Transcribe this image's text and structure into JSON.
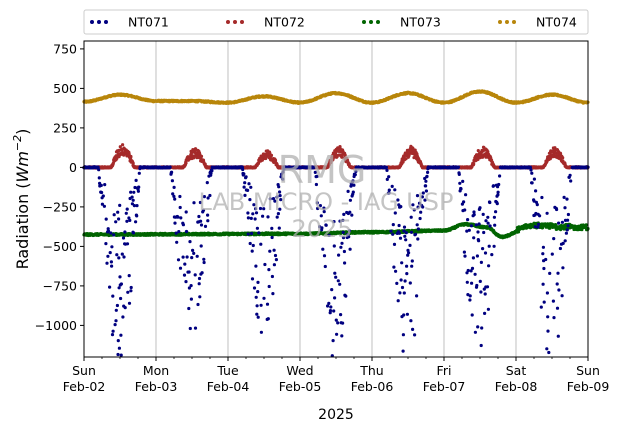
{
  "chart_data": {
    "type": "scatter",
    "title": "",
    "ylabel": "Radiation (Wm⁻²)",
    "ylabel_main": "Radiation (",
    "ylabel_unit": "Wm",
    "ylabel_exp": "−2",
    "ylabel_close": ")",
    "xlabel": "2025",
    "ylim": [
      -1200,
      800
    ],
    "yticks": [
      750,
      500,
      250,
      0,
      -250,
      -500,
      -750,
      -1000
    ],
    "ytick_labels": [
      "750",
      "500",
      "250",
      "0",
      "−250",
      "−500",
      "−750",
      "−1000"
    ],
    "xlim_days": [
      0,
      7
    ],
    "xticks": [
      {
        "day": 0,
        "line1": "Sun",
        "line2": "Feb-02"
      },
      {
        "day": 1,
        "line1": "Mon",
        "line2": "Feb-03"
      },
      {
        "day": 2,
        "line1": "Tue",
        "line2": "Feb-04"
      },
      {
        "day": 3,
        "line1": "Wed",
        "line2": "Feb-05"
      },
      {
        "day": 4,
        "line1": "Thu",
        "line2": "Feb-06"
      },
      {
        "day": 5,
        "line1": "Fri",
        "line2": "Feb-07"
      },
      {
        "day": 6,
        "line1": "Sat",
        "line2": "Feb-08"
      },
      {
        "day": 7,
        "line1": "Sun",
        "line2": "Feb-09"
      }
    ],
    "grid": "vertical",
    "legend_position": "top",
    "series": [
      {
        "name": "NT071",
        "color": "#000080",
        "baseline": 0,
        "day_min": [
          -1180,
          -1040,
          -1030,
          -1180,
          -1190,
          -1190,
          -1190
        ]
      },
      {
        "name": "NT072",
        "color": "#a52a2a",
        "baseline": 0,
        "day_max": [
          150,
          120,
          110,
          130,
          135,
          130,
          125
        ]
      },
      {
        "name": "NT073",
        "color": "#006400",
        "levels": [
          [
            0,
            -425
          ],
          [
            3,
            -420
          ],
          [
            4,
            -410
          ],
          [
            5,
            -400
          ],
          [
            5.3,
            -360
          ],
          [
            5.6,
            -380
          ],
          [
            5.8,
            -440
          ],
          [
            6.2,
            -370
          ],
          [
            7,
            -380
          ]
        ]
      },
      {
        "name": "NT074",
        "color": "#b8860b",
        "levels": [
          [
            0,
            415
          ],
          [
            0.5,
            460
          ],
          [
            1,
            420
          ],
          [
            1.5,
            420
          ],
          [
            2,
            410
          ],
          [
            2.5,
            450
          ],
          [
            3,
            410
          ],
          [
            3.5,
            470
          ],
          [
            4,
            410
          ],
          [
            4.5,
            470
          ],
          [
            5,
            410
          ],
          [
            5.5,
            480
          ],
          [
            6,
            410
          ],
          [
            6.5,
            460
          ],
          [
            7,
            410
          ]
        ]
      }
    ],
    "watermark": {
      "line1": "RMG",
      "line2": "LAB MICRO - IAG USP",
      "line3": "2025"
    }
  }
}
